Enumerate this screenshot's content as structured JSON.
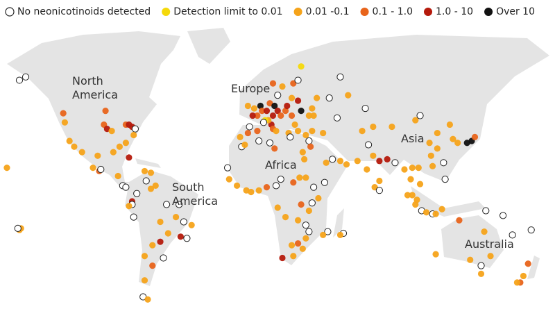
{
  "legend": [
    {
      "label": "No neonicotinoids detected",
      "color": "#ffffff",
      "stroke": "#222222"
    },
    {
      "label": "Detection limit to 0.01",
      "color": "#f5d90a"
    },
    {
      "label": "0.01 -0.1",
      "color": "#f5a31a"
    },
    {
      "label": "0.1 - 1.0",
      "color": "#e8641b"
    },
    {
      "label": "1.0 - 10",
      "color": "#b51a0c"
    },
    {
      "label": "Over 10",
      "color": "#111111"
    }
  ],
  "regions": {
    "north_america": [
      "North",
      "America"
    ],
    "europe": [
      "Europe"
    ],
    "africa": [
      "Africa"
    ],
    "south_america": [
      "South",
      "America"
    ],
    "asia": [
      "Asia"
    ],
    "australia": [
      "Australia"
    ]
  },
  "points": [
    [
      -150,
      61,
      0
    ],
    [
      -146,
      62,
      0
    ],
    [
      -122,
      49,
      3
    ],
    [
      -121,
      45,
      2
    ],
    [
      -118,
      36,
      2
    ],
    [
      -115,
      33,
      2
    ],
    [
      -110,
      30,
      2
    ],
    [
      -95,
      50,
      3
    ],
    [
      -96,
      44,
      3
    ],
    [
      -94,
      42,
      4
    ],
    [
      -91,
      41,
      2
    ],
    [
      -82,
      44,
      3
    ],
    [
      -80,
      44,
      4
    ],
    [
      -78,
      43,
      4
    ],
    [
      -76,
      42,
      0
    ],
    [
      -77,
      39,
      2
    ],
    [
      -82,
      35,
      2
    ],
    [
      -86,
      33,
      2
    ],
    [
      -90,
      30,
      2
    ],
    [
      -80,
      27,
      4
    ],
    [
      -100,
      28,
      2
    ],
    [
      -103,
      21,
      2
    ],
    [
      -99,
      19,
      3
    ],
    [
      -98,
      20,
      0
    ],
    [
      -87,
      16,
      2
    ],
    [
      -84,
      10,
      0
    ],
    [
      -82,
      9,
      0
    ],
    [
      -70,
      19,
      2
    ],
    [
      -66,
      18,
      2
    ],
    [
      -69,
      13,
      0
    ],
    [
      -158,
      21,
      2
    ],
    [
      -149,
      -17,
      2
    ],
    [
      -150,
      -18,
      2
    ],
    [
      -151,
      -17,
      0
    ],
    [
      -75,
      5,
      0
    ],
    [
      -66,
      8,
      2
    ],
    [
      -63,
      10,
      2
    ],
    [
      -78,
      0,
      4
    ],
    [
      -78,
      -2,
      0
    ],
    [
      -80,
      -3,
      2
    ],
    [
      -77,
      -10,
      0
    ],
    [
      -56,
      -2,
      0
    ],
    [
      -48,
      -2,
      0
    ],
    [
      -60,
      -13,
      2
    ],
    [
      -50,
      -10,
      2
    ],
    [
      -45,
      -13,
      0
    ],
    [
      -40,
      -15,
      2
    ],
    [
      -47,
      -22,
      4
    ],
    [
      -43,
      -23,
      0
    ],
    [
      -55,
      -20,
      2
    ],
    [
      -60,
      -25,
      4
    ],
    [
      -65,
      -27,
      2
    ],
    [
      -70,
      -33,
      2
    ],
    [
      -58,
      -34,
      0
    ],
    [
      -65,
      -38,
      3
    ],
    [
      -70,
      -45,
      2
    ],
    [
      -71,
      -52,
      0
    ],
    [
      -68,
      -53,
      2
    ],
    [
      -9,
      38,
      2
    ],
    [
      -4,
      40,
      3
    ],
    [
      -3,
      43,
      0
    ],
    [
      2,
      41,
      3
    ],
    [
      2,
      48,
      3
    ],
    [
      -1,
      48,
      4
    ],
    [
      -4,
      52,
      2
    ],
    [
      0,
      51,
      2
    ],
    [
      4,
      52,
      5
    ],
    [
      5,
      50,
      3
    ],
    [
      8,
      50,
      4
    ],
    [
      10,
      53,
      3
    ],
    [
      13,
      52,
      5
    ],
    [
      12,
      48,
      4
    ],
    [
      15,
      50,
      4
    ],
    [
      17,
      48,
      3
    ],
    [
      20,
      50,
      3
    ],
    [
      21,
      52,
      4
    ],
    [
      24,
      48,
      3
    ],
    [
      26,
      44,
      2
    ],
    [
      11,
      44,
      4
    ],
    [
      12,
      42,
      3
    ],
    [
      14,
      41,
      2
    ],
    [
      9,
      46,
      2
    ],
    [
      7,
      46,
      1
    ],
    [
      6,
      45,
      0
    ],
    [
      15,
      56,
      0
    ],
    [
      12,
      60,
      3
    ],
    [
      18,
      59,
      2
    ],
    [
      25,
      60,
      3
    ],
    [
      28,
      61,
      0
    ],
    [
      30,
      65,
      1
    ],
    [
      24,
      55,
      2
    ],
    [
      28,
      54,
      4
    ],
    [
      30,
      50,
      5
    ],
    [
      35,
      48,
      2
    ],
    [
      38,
      48,
      2
    ],
    [
      40,
      55,
      2
    ],
    [
      48,
      55,
      0
    ],
    [
      37,
      51,
      2
    ],
    [
      22,
      40,
      2
    ],
    [
      23,
      38,
      0
    ],
    [
      28,
      41,
      2
    ],
    [
      33,
      39,
      2
    ],
    [
      35,
      36,
      0
    ],
    [
      36,
      33,
      3
    ],
    [
      44,
      40,
      2
    ],
    [
      37,
      41,
      2
    ],
    [
      -8,
      33,
      0
    ],
    [
      -6,
      34,
      2
    ],
    [
      3,
      36,
      0
    ],
    [
      10,
      35,
      0
    ],
    [
      13,
      32,
      3
    ],
    [
      31,
      30,
      2
    ],
    [
      32,
      26,
      2
    ],
    [
      -16,
      14,
      2
    ],
    [
      -17,
      21,
      0
    ],
    [
      -11,
      10,
      2
    ],
    [
      -5,
      7,
      2
    ],
    [
      -2,
      6,
      2
    ],
    [
      3,
      7,
      2
    ],
    [
      8,
      9,
      3
    ],
    [
      14,
      10,
      0
    ],
    [
      17,
      14,
      0
    ],
    [
      25,
      12,
      3
    ],
    [
      29,
      15,
      2
    ],
    [
      33,
      15,
      2
    ],
    [
      38,
      9,
      0
    ],
    [
      45,
      12,
      0
    ],
    [
      41,
      2,
      2
    ],
    [
      37,
      -1,
      0
    ],
    [
      30,
      -2,
      3
    ],
    [
      15,
      -4,
      2
    ],
    [
      20,
      -10,
      2
    ],
    [
      28,
      -12,
      2
    ],
    [
      35,
      -6,
      2
    ],
    [
      33,
      -15,
      0
    ],
    [
      35,
      -19,
      0
    ],
    [
      33,
      -23,
      2
    ],
    [
      28,
      -26,
      3
    ],
    [
      24,
      -27,
      2
    ],
    [
      18,
      -34,
      4
    ],
    [
      25,
      -33,
      2
    ],
    [
      31,
      -29,
      2
    ],
    [
      47,
      -19,
      0
    ],
    [
      44,
      -21,
      2
    ],
    [
      57,
      -20,
      0
    ],
    [
      55,
      -21,
      2
    ],
    [
      50,
      26,
      0
    ],
    [
      46,
      24,
      2
    ],
    [
      55,
      25,
      2
    ],
    [
      59,
      23,
      2
    ],
    [
      66,
      25,
      2
    ],
    [
      72,
      20,
      2
    ],
    [
      76,
      28,
      2
    ],
    [
      73,
      34,
      0
    ],
    [
      80,
      25,
      4
    ],
    [
      85,
      26,
      4
    ],
    [
      80,
      13,
      2
    ],
    [
      77,
      9,
      2
    ],
    [
      80,
      7,
      0
    ],
    [
      90,
      24,
      0
    ],
    [
      96,
      20,
      2
    ],
    [
      100,
      14,
      2
    ],
    [
      101,
      21,
      2
    ],
    [
      105,
      21,
      2
    ],
    [
      106,
      11,
      2
    ],
    [
      101,
      4,
      2
    ],
    [
      104,
      1,
      2
    ],
    [
      98,
      4,
      2
    ],
    [
      103,
      -2,
      2
    ],
    [
      107,
      -6,
      0
    ],
    [
      110,
      -7,
      2
    ],
    [
      114,
      -8,
      0
    ],
    [
      116,
      -8,
      2
    ],
    [
      120,
      -5,
      2
    ],
    [
      122,
      14,
      0
    ],
    [
      121,
      24,
      0
    ],
    [
      114,
      22,
      2
    ],
    [
      113,
      28,
      2
    ],
    [
      117,
      32,
      2
    ],
    [
      112,
      35,
      2
    ],
    [
      117,
      40,
      2
    ],
    [
      125,
      44,
      2
    ],
    [
      130,
      35,
      2
    ],
    [
      127,
      37,
      2
    ],
    [
      136,
      35,
      5
    ],
    [
      139,
      36,
      5
    ],
    [
      141,
      38,
      3
    ],
    [
      88,
      43,
      2
    ],
    [
      76,
      43,
      2
    ],
    [
      69,
      41,
      2
    ],
    [
      53,
      47,
      0
    ],
    [
      71,
      51,
      0
    ],
    [
      103,
      46,
      2
    ],
    [
      106,
      48,
      0
    ],
    [
      60,
      56,
      2
    ],
    [
      55,
      62,
      0
    ],
    [
      131,
      -12,
      3
    ],
    [
      147,
      -19,
      2
    ],
    [
      145,
      -38,
      0
    ],
    [
      151,
      -33,
      2
    ],
    [
      138,
      -35,
      2
    ],
    [
      116,
      -32,
      2
    ],
    [
      145,
      -42,
      2
    ],
    [
      165,
      -21,
      0
    ],
    [
      177,
      -18,
      0
    ],
    [
      175,
      -37,
      3
    ],
    [
      172,
      -43,
      2
    ],
    [
      170,
      -46,
      3
    ],
    [
      168,
      -46,
      2
    ],
    [
      148,
      -6,
      0
    ],
    [
      159,
      -9,
      0
    ]
  ]
}
